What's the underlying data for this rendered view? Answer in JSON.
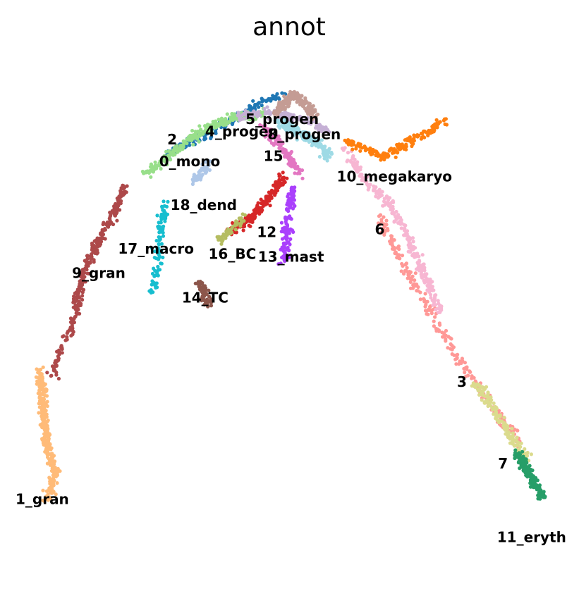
{
  "chart_data": {
    "type": "scatter",
    "title": "annot",
    "xlabel": "",
    "ylabel": "",
    "axes_visible": false,
    "grid": false,
    "legend": "on data",
    "clusters": [
      {
        "label": "0_mono",
        "color": "#1f77b4",
        "path": [
          [
            0.245,
            0.88
          ],
          [
            0.268,
            0.8
          ],
          [
            0.3,
            0.72
          ],
          [
            0.335,
            0.62
          ],
          [
            0.375,
            0.48
          ],
          [
            0.405,
            0.42
          ]
        ],
        "count": 90
      },
      {
        "label": "1_gran",
        "color": "#ffbb78",
        "path": [
          [
            0.085,
            3.4
          ],
          [
            0.095,
            3.2
          ],
          [
            0.085,
            3.0
          ],
          [
            0.08,
            2.8
          ],
          [
            0.078,
            2.6
          ],
          [
            0.074,
            2.44
          ]
        ],
        "count": 160
      },
      {
        "label": "2",
        "color": "#98df8a",
        "path": [
          [
            0.22,
            1.0
          ],
          [
            0.25,
            0.88
          ],
          [
            0.272,
            0.78
          ],
          [
            0.305,
            0.66
          ],
          [
            0.345,
            0.58
          ],
          [
            0.38,
            0.56
          ]
        ],
        "count": 130
      },
      {
        "label": "3",
        "color": "#ff9896",
        "path": [
          [
            0.54,
            1.3
          ],
          [
            0.545,
            1.42
          ],
          [
            0.63,
            2.24
          ],
          [
            0.65,
            2.4
          ],
          [
            0.69,
            2.7
          ],
          [
            0.73,
            2.98
          ]
        ],
        "count": 110
      },
      {
        "label": "4_progen",
        "color": "#c5b0d5",
        "path": [
          [
            0.345,
            0.58
          ],
          [
            0.39,
            0.55
          ],
          [
            0.425,
            0.6
          ],
          [
            0.45,
            0.64
          ],
          [
            0.47,
            0.7
          ]
        ],
        "count": 70
      },
      {
        "label": "5_progen",
        "color": "#c49c94",
        "path": [
          [
            0.395,
            0.56
          ],
          [
            0.41,
            0.48
          ],
          [
            0.42,
            0.42
          ],
          [
            0.432,
            0.46
          ],
          [
            0.44,
            0.52
          ],
          [
            0.45,
            0.58
          ]
        ],
        "count": 110
      },
      {
        "label": "6",
        "color": "#f7b6d2",
        "path": [
          [
            0.49,
            0.82
          ],
          [
            0.52,
            1.06
          ],
          [
            0.55,
            1.22
          ],
          [
            0.57,
            1.4
          ],
          [
            0.6,
            1.76
          ],
          [
            0.62,
            2.02
          ]
        ],
        "count": 130
      },
      {
        "label": "7",
        "color": "#dbdb8d",
        "path": [
          [
            0.67,
            2.55
          ],
          [
            0.69,
            2.7
          ],
          [
            0.705,
            2.84
          ],
          [
            0.725,
            3.0
          ],
          [
            0.74,
            3.1
          ]
        ],
        "count": 80
      },
      {
        "label": "8_progen",
        "color": "#9edae5",
        "path": [
          [
            0.4,
            0.62
          ],
          [
            0.42,
            0.68
          ],
          [
            0.435,
            0.72
          ],
          [
            0.448,
            0.76
          ],
          [
            0.46,
            0.82
          ],
          [
            0.47,
            0.88
          ]
        ],
        "count": 100
      },
      {
        "label": "9_gran",
        "color": "#ad494a",
        "path": [
          [
            0.19,
            1.1
          ],
          [
            0.175,
            1.3
          ],
          [
            0.15,
            1.55
          ],
          [
            0.13,
            1.8
          ],
          [
            0.12,
            2.1
          ],
          [
            0.1,
            2.36
          ],
          [
            0.092,
            2.5
          ]
        ],
        "count": 150
      },
      {
        "label": "10_megakaryo",
        "color": "#ff7f0e",
        "path": [
          [
            0.49,
            0.76
          ],
          [
            0.52,
            0.82
          ],
          [
            0.545,
            0.88
          ],
          [
            0.58,
            0.76
          ],
          [
            0.6,
            0.7
          ],
          [
            0.625,
            0.62
          ]
        ],
        "count": 90
      },
      {
        "label": "11_eryth",
        "color": "#279e68",
        "path": [
          [
            0.725,
            3.05
          ],
          [
            0.735,
            3.15
          ],
          [
            0.745,
            3.25
          ],
          [
            0.755,
            3.33
          ],
          [
            0.76,
            3.38
          ]
        ],
        "count": 80
      },
      {
        "label": "12",
        "color": "#d62728",
        "path": [
          [
            0.33,
            1.44
          ],
          [
            0.355,
            1.36
          ],
          [
            0.37,
            1.3
          ],
          [
            0.385,
            1.18
          ],
          [
            0.4,
            1.1
          ],
          [
            0.405,
            1.0
          ]
        ],
        "count": 90
      },
      {
        "label": "13_mast",
        "color": "#aa40fc",
        "path": [
          [
            0.42,
            1.1
          ],
          [
            0.415,
            1.26
          ],
          [
            0.412,
            1.4
          ],
          [
            0.41,
            1.52
          ],
          [
            0.408,
            1.66
          ]
        ],
        "count": 60
      },
      {
        "label": "14_TC",
        "color": "#8c564b",
        "path": [
          [
            0.292,
            1.8
          ],
          [
            0.298,
            1.86
          ],
          [
            0.302,
            1.92
          ],
          [
            0.304,
            1.98
          ]
        ],
        "count": 30
      },
      {
        "label": "15",
        "color": "#e377c2",
        "path": [
          [
            0.38,
            0.66
          ],
          [
            0.395,
            0.75
          ],
          [
            0.41,
            0.85
          ],
          [
            0.42,
            0.93
          ],
          [
            0.43,
            1.0
          ]
        ],
        "count": 60
      },
      {
        "label": "16_BC",
        "color": "#b5bd61",
        "path": [
          [
            0.32,
            1.5
          ],
          [
            0.33,
            1.44
          ],
          [
            0.345,
            1.36
          ],
          [
            0.355,
            1.32
          ]
        ],
        "count": 25
      },
      {
        "label": "17_macro",
        "color": "#17becf",
        "path": [
          [
            0.225,
            1.88
          ],
          [
            0.232,
            1.82
          ],
          [
            0.24,
            1.4
          ],
          [
            0.245,
            1.24
          ],
          [
            0.25,
            1.18
          ]
        ],
        "count": 45
      },
      {
        "label": "18_dend",
        "color": "#aec7e8",
        "path": [
          [
            0.285,
            1.06
          ],
          [
            0.295,
            1.0
          ],
          [
            0.3,
            0.96
          ],
          [
            0.305,
            0.92
          ]
        ],
        "count": 25
      }
    ],
    "labels": [
      {
        "text": "0_mono",
        "x": 0.279,
        "y": 0.92
      },
      {
        "text": "1_gran",
        "x": 0.078,
        "y": 3.4
      },
      {
        "text": "2",
        "x": 0.255,
        "y": 0.76
      },
      {
        "text": "3",
        "x": 0.65,
        "y": 2.54
      },
      {
        "text": "4_progen",
        "x": 0.35,
        "y": 0.7
      },
      {
        "text": "5_progen",
        "x": 0.405,
        "y": 0.61
      },
      {
        "text": "6",
        "x": 0.538,
        "y": 1.42
      },
      {
        "text": "7",
        "x": 0.706,
        "y": 3.14
      },
      {
        "text": "8_progen",
        "x": 0.435,
        "y": 0.72
      },
      {
        "text": "9_gran",
        "x": 0.155,
        "y": 1.74
      },
      {
        "text": "10_megakaryo",
        "x": 0.558,
        "y": 1.03
      },
      {
        "text": "11_eryth",
        "x": 0.745,
        "y": 3.68
      },
      {
        "text": "12",
        "x": 0.384,
        "y": 1.44
      },
      {
        "text": "13_mast",
        "x": 0.417,
        "y": 1.62
      },
      {
        "text": "14_TC",
        "x": 0.3,
        "y": 1.92
      },
      {
        "text": "15",
        "x": 0.393,
        "y": 0.88
      },
      {
        "text": "16_BC",
        "x": 0.337,
        "y": 1.6
      },
      {
        "text": "17_macro",
        "x": 0.233,
        "y": 1.56
      },
      {
        "text": "18_dend",
        "x": 0.298,
        "y": 1.24
      }
    ],
    "xlim": [
      0.03,
      0.8
    ],
    "ylim": [
      0.1,
      4.0
    ]
  }
}
